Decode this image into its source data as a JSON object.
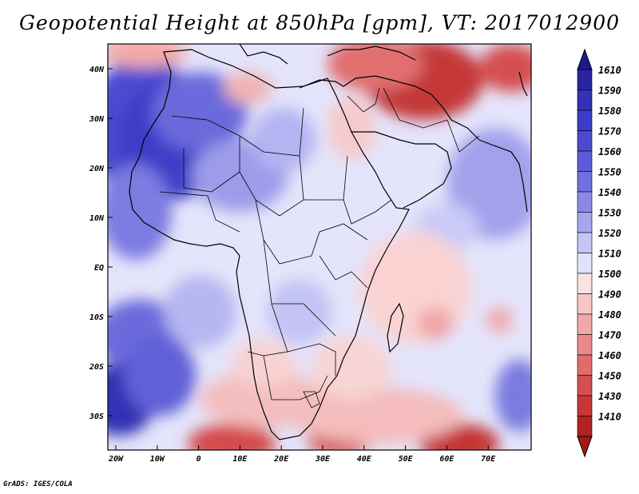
{
  "title": "Geopotential Height at 850hPa [gpm], VT: 2017012900",
  "footer": "GrADS: IGES/COLA",
  "axes": {
    "y_labels": [
      "40N",
      "30N",
      "20N",
      "10N",
      "EQ",
      "10S",
      "20S",
      "30S"
    ],
    "x_labels": [
      "20W",
      "10W",
      "0",
      "10E",
      "20E",
      "30E",
      "40E",
      "50E",
      "60E",
      "70E"
    ]
  },
  "colorbar": {
    "levels": [
      "1610",
      "1590",
      "1580",
      "1570",
      "1560",
      "1550",
      "1540",
      "1530",
      "1520",
      "1510",
      "1500",
      "1490",
      "1480",
      "1470",
      "1460",
      "1450",
      "1430",
      "1410"
    ],
    "colors": [
      "#28249e",
      "#3232b4",
      "#3c3cc6",
      "#4a4ad0",
      "#5c5cd8",
      "#7070de",
      "#8a8ae6",
      "#a6a6ee",
      "#c4c4f6",
      "#e2e2fb",
      "#fbe2e2",
      "#f8c6c6",
      "#f2a8a8",
      "#ea8a8a",
      "#e06c6c",
      "#d45050",
      "#c63838",
      "#b22222"
    ],
    "top_arrow_color": "#1c1a8e",
    "bottom_arrow_color": "#a01818"
  },
  "background_color": "#e4e4fb"
}
